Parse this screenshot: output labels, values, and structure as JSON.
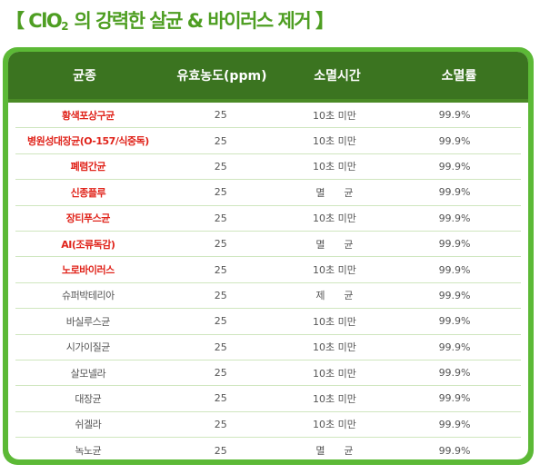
{
  "title": {
    "prefix": "【 ClO",
    "subscript": "2",
    "suffix": " 의 강력한 살균 & 바이러스 제거 】"
  },
  "colors": {
    "title_green": "#4e9e22",
    "frame_green": "#5cb936",
    "header_green": "#3b7420",
    "highlight_red": "#e0241b"
  },
  "table": {
    "headers": [
      "균종",
      "유효농도(ppm)",
      "소멸시간",
      "소멸률"
    ],
    "rows": [
      {
        "name": "황색포상구균",
        "ppm": "25",
        "time": "10초 미만",
        "rate": "99.9%",
        "highlight": true
      },
      {
        "name": "병원성대장균(O-157/식중독)",
        "ppm": "25",
        "time": "10초 미만",
        "rate": "99.9%",
        "highlight": true
      },
      {
        "name": "폐렴간균",
        "ppm": "25",
        "time": "10초 미만",
        "rate": "99.9%",
        "highlight": true
      },
      {
        "name": "신종플루",
        "ppm": "25",
        "time": "멸      균",
        "rate": "99.9%",
        "highlight": true
      },
      {
        "name": "장티푸스균",
        "ppm": "25",
        "time": "10초 미만",
        "rate": "99.9%",
        "highlight": true
      },
      {
        "name": "AI(조류독감)",
        "ppm": "25",
        "time": "멸      균",
        "rate": "99.9%",
        "highlight": true
      },
      {
        "name": "노로바이러스",
        "ppm": "25",
        "time": "10초 미만",
        "rate": "99.9%",
        "highlight": true
      },
      {
        "name": "슈퍼박테리아",
        "ppm": "25",
        "time": "제      균",
        "rate": "99.9%",
        "highlight": false
      },
      {
        "name": "바실루스균",
        "ppm": "25",
        "time": "10초 미만",
        "rate": "99.9%",
        "highlight": false
      },
      {
        "name": "시가이질균",
        "ppm": "25",
        "time": "10초 미만",
        "rate": "99.9%",
        "highlight": false
      },
      {
        "name": "살모넬라",
        "ppm": "25",
        "time": "10초 미만",
        "rate": "99.9%",
        "highlight": false
      },
      {
        "name": "대장균",
        "ppm": "25",
        "time": "10초 미만",
        "rate": "99.9%",
        "highlight": false
      },
      {
        "name": "쉬겔라",
        "ppm": "25",
        "time": "10초 미만",
        "rate": "99.9%",
        "highlight": false
      },
      {
        "name": "녹노균",
        "ppm": "25",
        "time": "멸      균",
        "rate": "99.9%",
        "highlight": false
      }
    ]
  }
}
